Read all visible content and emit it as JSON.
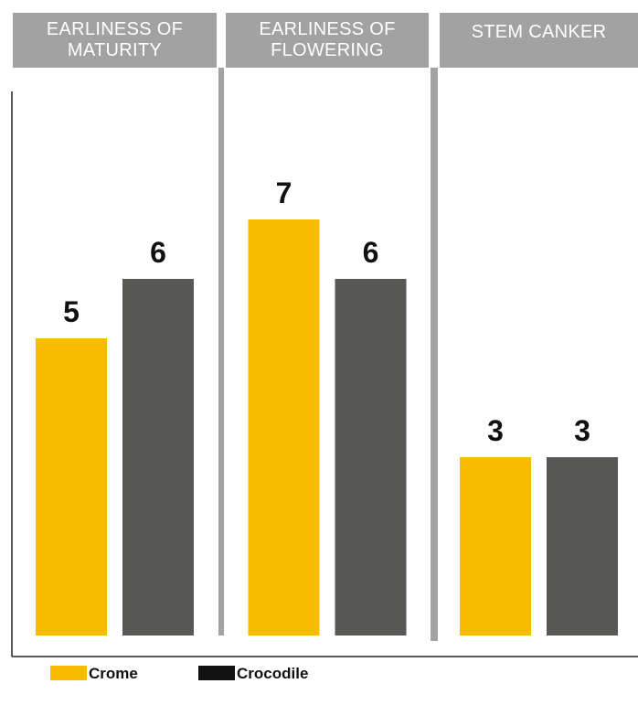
{
  "chart_data": {
    "type": "bar",
    "categories": [
      "EARLINESS OF MATURITY",
      "EARLINESS OF FLOWERING",
      "STEM CANKER"
    ],
    "category_header_lines": [
      [
        "EARLINESS OF",
        "MATURITY"
      ],
      [
        "EARLINESS OF",
        "FLOWERING"
      ],
      [
        "STEM CANKER"
      ]
    ],
    "series": [
      {
        "name": "Crome",
        "values": [
          5,
          7,
          3
        ],
        "color": "#F8BC00"
      },
      {
        "name": "Crocodile",
        "values": [
          6,
          6,
          3
        ],
        "color": "#575756"
      }
    ],
    "ylim": [
      0,
      10
    ],
    "grid": false,
    "legend_position": "bottom-left",
    "header_color": "#A2A2A2",
    "divider_color": "#A2A2A2"
  }
}
